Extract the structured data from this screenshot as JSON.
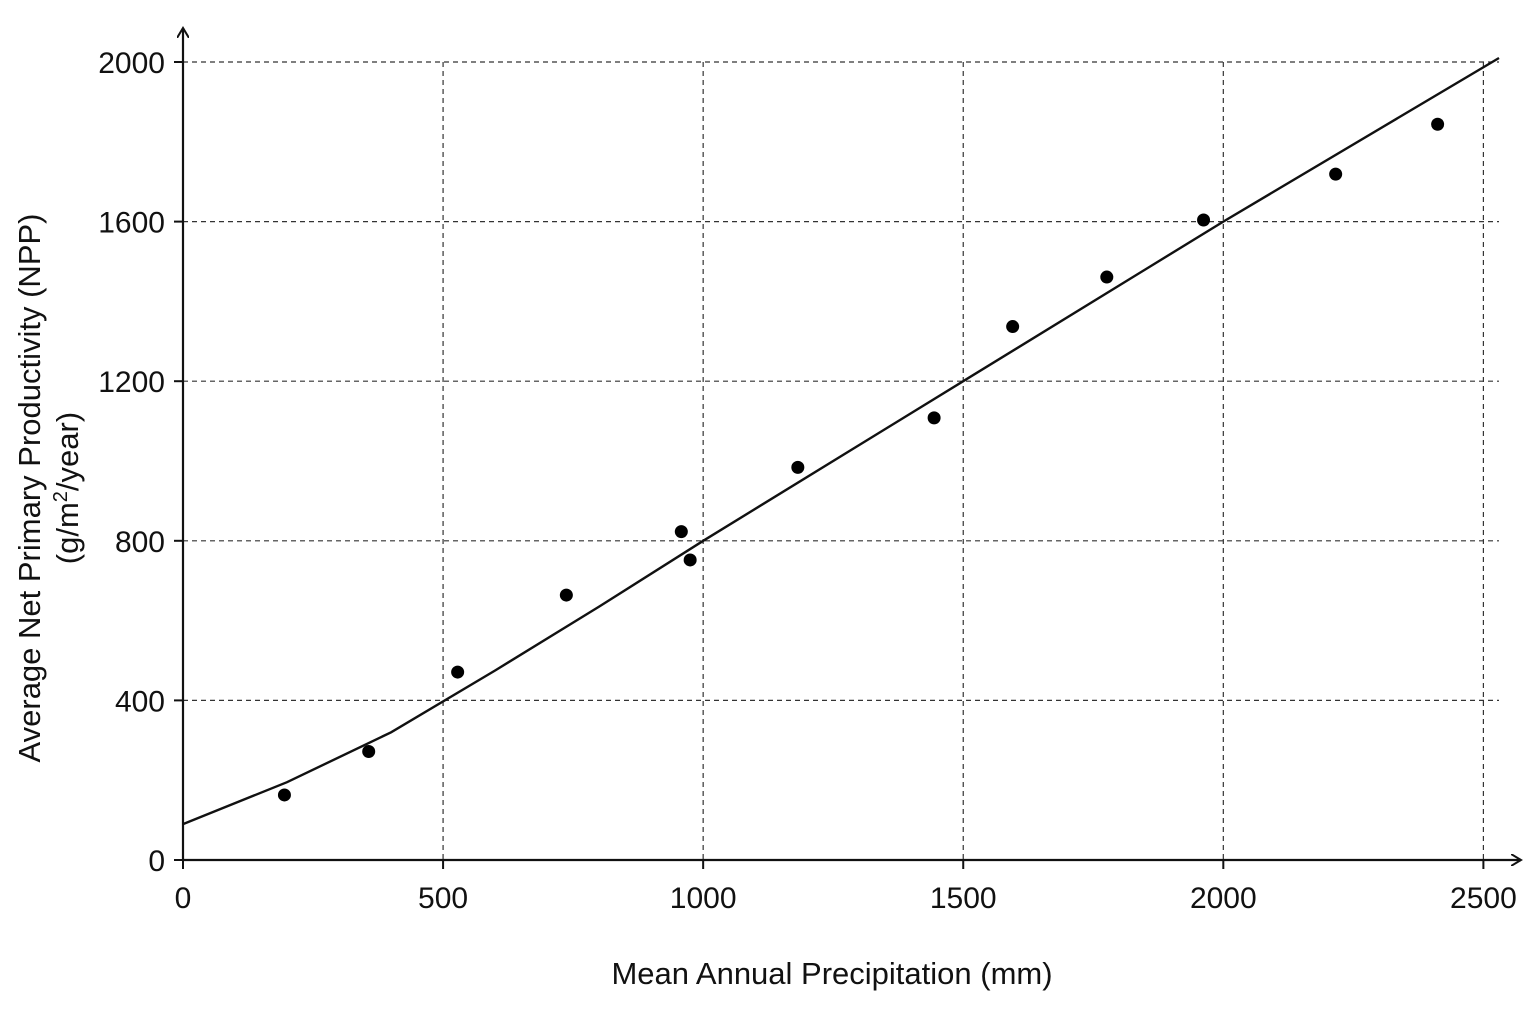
{
  "chart_data": {
    "type": "scatter",
    "title": "",
    "xlabel": "Mean Annual Precipitation (mm)",
    "ylabel_line1": "Average Net Primary Productivity (NPP)",
    "ylabel_line2_prefix": "(g/m",
    "ylabel_line2_sup": "2",
    "ylabel_line2_suffix": "/year)",
    "xlim": [
      0,
      2530
    ],
    "ylim": [
      0,
      2000
    ],
    "x_ticks": [
      0,
      500,
      1000,
      1500,
      2000,
      2500
    ],
    "y_ticks": [
      0,
      400,
      800,
      1200,
      1600,
      2000
    ],
    "x_tick_labels": [
      "0",
      "500",
      "1000",
      "1500",
      "2000",
      "2500"
    ],
    "y_tick_labels": [
      "0",
      "400",
      "800",
      "1200",
      "1600",
      "2000"
    ],
    "grid": true,
    "points": [
      {
        "x": 195,
        "y": 163
      },
      {
        "x": 357,
        "y": 272
      },
      {
        "x": 528,
        "y": 471
      },
      {
        "x": 737,
        "y": 664
      },
      {
        "x": 958,
        "y": 823
      },
      {
        "x": 975,
        "y": 752
      },
      {
        "x": 1182,
        "y": 984
      },
      {
        "x": 1444,
        "y": 1108
      },
      {
        "x": 1595,
        "y": 1337
      },
      {
        "x": 1776,
        "y": 1461
      },
      {
        "x": 1962,
        "y": 1604
      },
      {
        "x": 2216,
        "y": 1719
      },
      {
        "x": 2412,
        "y": 1844
      }
    ],
    "fit_line": [
      {
        "x": 0,
        "y": 90
      },
      {
        "x": 200,
        "y": 195
      },
      {
        "x": 400,
        "y": 320
      },
      {
        "x": 600,
        "y": 475
      },
      {
        "x": 800,
        "y": 635
      },
      {
        "x": 1000,
        "y": 800
      },
      {
        "x": 1500,
        "y": 1200
      },
      {
        "x": 2000,
        "y": 1600
      },
      {
        "x": 2530,
        "y": 2010
      }
    ]
  }
}
